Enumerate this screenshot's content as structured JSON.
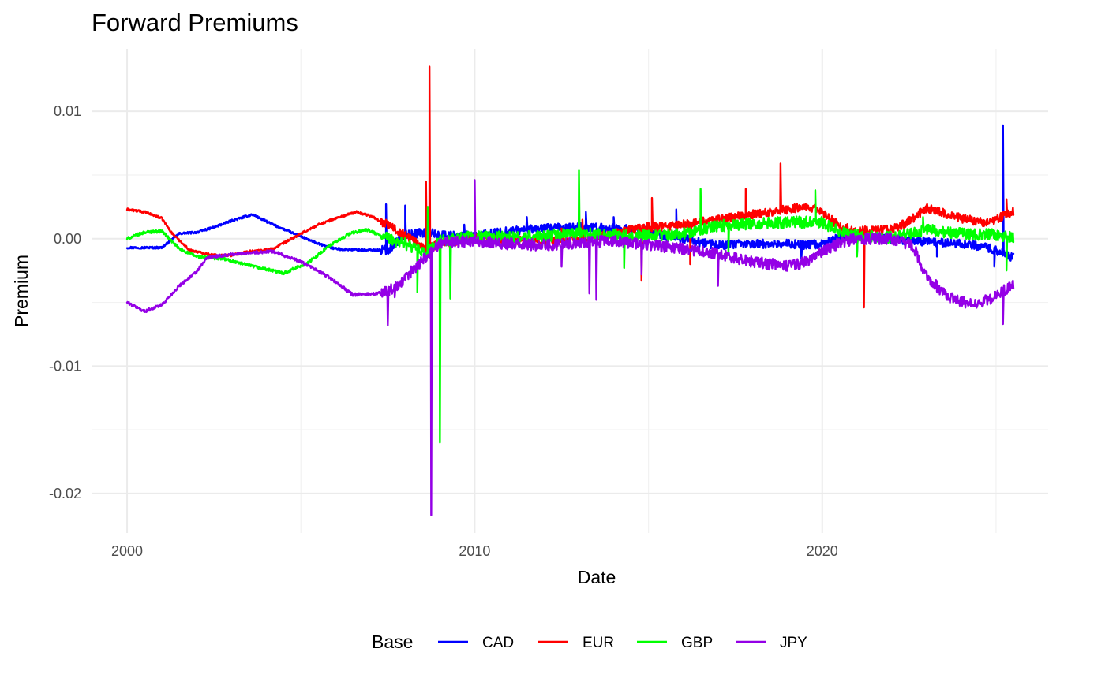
{
  "chart_data": {
    "type": "line",
    "title": "Forward Premiums",
    "xlabel": "Date",
    "ylabel": "Premium",
    "xlim": [
      1999.0,
      2026.5
    ],
    "ylim": [
      -0.0231,
      0.0149
    ],
    "x_ticks": [
      {
        "value": 2000,
        "label": "2000"
      },
      {
        "value": 2010,
        "label": "2010"
      },
      {
        "value": 2020,
        "label": "2020"
      }
    ],
    "x_minor_ticks": [
      2005,
      2015,
      2025
    ],
    "y_ticks": [
      {
        "value": 0.01,
        "label": "0.01"
      },
      {
        "value": 0.0,
        "label": "0.00"
      },
      {
        "value": -0.01,
        "label": "-0.01"
      },
      {
        "value": -0.02,
        "label": "-0.02"
      }
    ],
    "y_minor_ticks": [
      0.005,
      -0.005,
      -0.015
    ],
    "grid": true,
    "legend": {
      "title": "Base",
      "position": "bottom"
    },
    "series": [
      {
        "name": "CAD",
        "color": "#0000ff",
        "noise": 0.00035,
        "points": [
          [
            2000.0,
            -0.0007
          ],
          [
            2001.0,
            -0.0007
          ],
          [
            2001.5,
            0.0004
          ],
          [
            2002.0,
            0.0005
          ],
          [
            2002.5,
            0.0009
          ],
          [
            2003.0,
            0.0014
          ],
          [
            2003.6,
            0.0019
          ],
          [
            2004.2,
            0.0011
          ],
          [
            2004.8,
            0.0004
          ],
          [
            2005.5,
            -0.0004
          ],
          [
            2006.0,
            -0.0008
          ],
          [
            2006.8,
            -0.0009
          ],
          [
            2007.5,
            -0.0009
          ],
          [
            2008.0,
            0.0003
          ],
          [
            2008.6,
            0.0005
          ],
          [
            2009.0,
            0.0003
          ],
          [
            2010.0,
            0.0002
          ],
          [
            2011.0,
            0.0006
          ],
          [
            2012.0,
            0.0008
          ],
          [
            2013.0,
            0.0009
          ],
          [
            2014.0,
            0.0008
          ],
          [
            2015.0,
            0.0006
          ],
          [
            2015.5,
            0.0002
          ],
          [
            2016.0,
            0.0
          ],
          [
            2016.5,
            -0.0003
          ],
          [
            2017.0,
            -0.0005
          ],
          [
            2018.0,
            -0.0004
          ],
          [
            2019.0,
            -0.0004
          ],
          [
            2019.5,
            -0.0005
          ],
          [
            2020.0,
            -0.0004
          ],
          [
            2020.5,
            0.0001
          ],
          [
            2021.0,
            0.0001
          ],
          [
            2022.0,
            0.0
          ],
          [
            2022.5,
            -0.0002
          ],
          [
            2023.0,
            -0.0002
          ],
          [
            2024.0,
            -0.0004
          ],
          [
            2024.6,
            -0.0006
          ],
          [
            2025.0,
            -0.0009
          ],
          [
            2025.5,
            -0.0015
          ]
        ],
        "spikes": [
          [
            2007.45,
            0.0027
          ],
          [
            2008.0,
            0.0026
          ],
          [
            2009.7,
            0.0011
          ],
          [
            2011.5,
            0.0017
          ],
          [
            2013.2,
            0.0021
          ],
          [
            2014.0,
            0.0017
          ],
          [
            2015.8,
            0.0023
          ],
          [
            2019.4,
            -0.0016
          ],
          [
            2021.0,
            -0.0012
          ],
          [
            2023.3,
            -0.0014
          ],
          [
            2024.95,
            -0.0022
          ],
          [
            2025.2,
            0.0089
          ]
        ]
      },
      {
        "name": "EUR",
        "color": "#ff0000",
        "noise": 0.00035,
        "points": [
          [
            2000.0,
            0.0023
          ],
          [
            2000.5,
            0.0021
          ],
          [
            2001.0,
            0.0016
          ],
          [
            2001.3,
            0.0004
          ],
          [
            2001.8,
            -0.0009
          ],
          [
            2002.5,
            -0.0013
          ],
          [
            2003.0,
            -0.0013
          ],
          [
            2003.5,
            -0.001
          ],
          [
            2004.2,
            -0.0008
          ],
          [
            2004.8,
            0.0001
          ],
          [
            2005.5,
            0.0011
          ],
          [
            2006.0,
            0.0016
          ],
          [
            2006.6,
            0.0021
          ],
          [
            2007.0,
            0.0018
          ],
          [
            2007.5,
            0.0011
          ],
          [
            2008.0,
            0.0003
          ],
          [
            2008.6,
            -0.0008
          ],
          [
            2009.0,
            -0.0004
          ],
          [
            2010.0,
            0.0001
          ],
          [
            2011.0,
            -0.0001
          ],
          [
            2012.0,
            -0.0002
          ],
          [
            2013.0,
            0.0
          ],
          [
            2014.0,
            0.0004
          ],
          [
            2015.0,
            0.0009
          ],
          [
            2016.0,
            0.0011
          ],
          [
            2017.0,
            0.0015
          ],
          [
            2018.0,
            0.0019
          ],
          [
            2019.0,
            0.0023
          ],
          [
            2019.6,
            0.0026
          ],
          [
            2020.0,
            0.002
          ],
          [
            2020.5,
            0.001
          ],
          [
            2021.0,
            0.0006
          ],
          [
            2022.0,
            0.0007
          ],
          [
            2022.5,
            0.0014
          ],
          [
            2023.0,
            0.0024
          ],
          [
            2023.5,
            0.002
          ],
          [
            2024.0,
            0.0016
          ],
          [
            2024.8,
            0.0012
          ],
          [
            2025.5,
            0.0022
          ]
        ],
        "spikes": [
          [
            2008.6,
            0.0045
          ],
          [
            2008.7,
            0.0135
          ],
          [
            2008.75,
            -0.0024
          ],
          [
            2012.5,
            0.0008
          ],
          [
            2013.1,
            0.0015
          ],
          [
            2014.8,
            -0.0033
          ],
          [
            2015.1,
            0.0032
          ],
          [
            2016.2,
            -0.002
          ],
          [
            2017.8,
            0.0039
          ],
          [
            2018.8,
            0.0059
          ],
          [
            2021.2,
            -0.0054
          ],
          [
            2025.3,
            0.0031
          ]
        ]
      },
      {
        "name": "GBP",
        "color": "#00ff00",
        "noise": 0.00045,
        "points": [
          [
            2000.0,
            0.0
          ],
          [
            2000.5,
            0.0005
          ],
          [
            2001.0,
            0.0006
          ],
          [
            2001.5,
            -0.0008
          ],
          [
            2002.0,
            -0.0014
          ],
          [
            2002.8,
            -0.0016
          ],
          [
            2003.5,
            -0.0021
          ],
          [
            2004.5,
            -0.0027
          ],
          [
            2005.2,
            -0.0019
          ],
          [
            2005.8,
            -0.0006
          ],
          [
            2006.4,
            0.0004
          ],
          [
            2006.9,
            0.0007
          ],
          [
            2007.5,
            0.0
          ],
          [
            2008.0,
            -0.0004
          ],
          [
            2008.6,
            -0.0012
          ],
          [
            2009.0,
            -0.0002
          ],
          [
            2010.0,
            0.0002
          ],
          [
            2011.0,
            0.0001
          ],
          [
            2012.0,
            0.0002
          ],
          [
            2013.0,
            0.0004
          ],
          [
            2014.0,
            0.0003
          ],
          [
            2015.0,
            0.0002
          ],
          [
            2016.0,
            0.0004
          ],
          [
            2017.0,
            0.001
          ],
          [
            2018.0,
            0.0012
          ],
          [
            2019.0,
            0.0013
          ],
          [
            2020.0,
            0.0013
          ],
          [
            2020.5,
            0.0005
          ],
          [
            2021.0,
            0.0003
          ],
          [
            2022.0,
            0.0001
          ],
          [
            2023.0,
            0.0007
          ],
          [
            2024.0,
            0.0004
          ],
          [
            2025.0,
            0.0003
          ],
          [
            2025.5,
            0.0001
          ]
        ],
        "spikes": [
          [
            2008.35,
            -0.0042
          ],
          [
            2008.65,
            0.0025
          ],
          [
            2009.0,
            -0.016
          ],
          [
            2009.3,
            -0.0047
          ],
          [
            2013.0,
            0.0054
          ],
          [
            2014.3,
            -0.0023
          ],
          [
            2016.5,
            0.0039
          ],
          [
            2017.3,
            -0.0013
          ],
          [
            2019.8,
            0.0038
          ],
          [
            2021.0,
            -0.0014
          ],
          [
            2022.9,
            0.0017
          ],
          [
            2025.3,
            -0.0025
          ]
        ]
      },
      {
        "name": "JPY",
        "color": "#9400e6",
        "noise": 0.00045,
        "points": [
          [
            2000.0,
            -0.005
          ],
          [
            2000.5,
            -0.0057
          ],
          [
            2001.0,
            -0.0052
          ],
          [
            2001.5,
            -0.0037
          ],
          [
            2002.0,
            -0.0026
          ],
          [
            2002.3,
            -0.0015
          ],
          [
            2002.8,
            -0.0013
          ],
          [
            2003.5,
            -0.0011
          ],
          [
            2004.2,
            -0.001
          ],
          [
            2005.0,
            -0.0018
          ],
          [
            2005.8,
            -0.003
          ],
          [
            2006.5,
            -0.0044
          ],
          [
            2007.2,
            -0.0043
          ],
          [
            2007.8,
            -0.0038
          ],
          [
            2008.3,
            -0.0022
          ],
          [
            2008.7,
            -0.0012
          ],
          [
            2009.0,
            -0.0003
          ],
          [
            2010.0,
            -0.0002
          ],
          [
            2011.0,
            -0.0004
          ],
          [
            2012.0,
            -0.0005
          ],
          [
            2013.0,
            -0.0003
          ],
          [
            2014.0,
            -0.0002
          ],
          [
            2015.0,
            -0.0005
          ],
          [
            2016.0,
            -0.0008
          ],
          [
            2017.0,
            -0.0012
          ],
          [
            2018.0,
            -0.0018
          ],
          [
            2019.0,
            -0.0022
          ],
          [
            2019.6,
            -0.0018
          ],
          [
            2020.0,
            -0.0011
          ],
          [
            2020.5,
            -0.0003
          ],
          [
            2021.0,
            0.0
          ],
          [
            2022.0,
            0.0
          ],
          [
            2022.6,
            -0.0005
          ],
          [
            2023.0,
            -0.003
          ],
          [
            2023.6,
            -0.0045
          ],
          [
            2024.3,
            -0.0052
          ],
          [
            2024.8,
            -0.0048
          ],
          [
            2025.5,
            -0.0036
          ]
        ],
        "spikes": [
          [
            2007.5,
            -0.0068
          ],
          [
            2007.7,
            -0.0046
          ],
          [
            2008.5,
            -0.0016
          ],
          [
            2008.75,
            -0.0217
          ],
          [
            2010.0,
            0.0046
          ],
          [
            2012.5,
            -0.0022
          ],
          [
            2013.3,
            -0.0043
          ],
          [
            2013.5,
            -0.0048
          ],
          [
            2014.8,
            -0.0028
          ],
          [
            2017.0,
            -0.0037
          ],
          [
            2025.2,
            -0.0067
          ]
        ]
      }
    ]
  }
}
